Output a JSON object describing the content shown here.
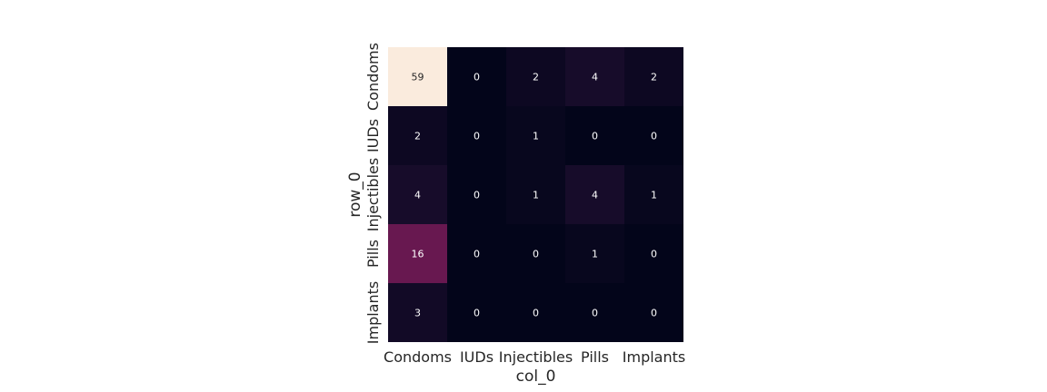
{
  "chart_data": {
    "type": "heatmap",
    "xlabel": "col_0",
    "ylabel": "row_0",
    "x_categories": [
      "Condoms",
      "IUDs",
      "Injectibles",
      "Pills",
      "Implants"
    ],
    "y_categories": [
      "Condoms",
      "IUDs",
      "Injectibles",
      "Pills",
      "Implants"
    ],
    "values": [
      [
        59,
        0,
        2,
        4,
        2
      ],
      [
        2,
        0,
        1,
        0,
        0
      ],
      [
        4,
        0,
        1,
        4,
        1
      ],
      [
        16,
        0,
        0,
        1,
        0
      ],
      [
        3,
        0,
        0,
        0,
        0
      ]
    ],
    "colorbar": false,
    "colormap": "rocket",
    "grid": false
  }
}
